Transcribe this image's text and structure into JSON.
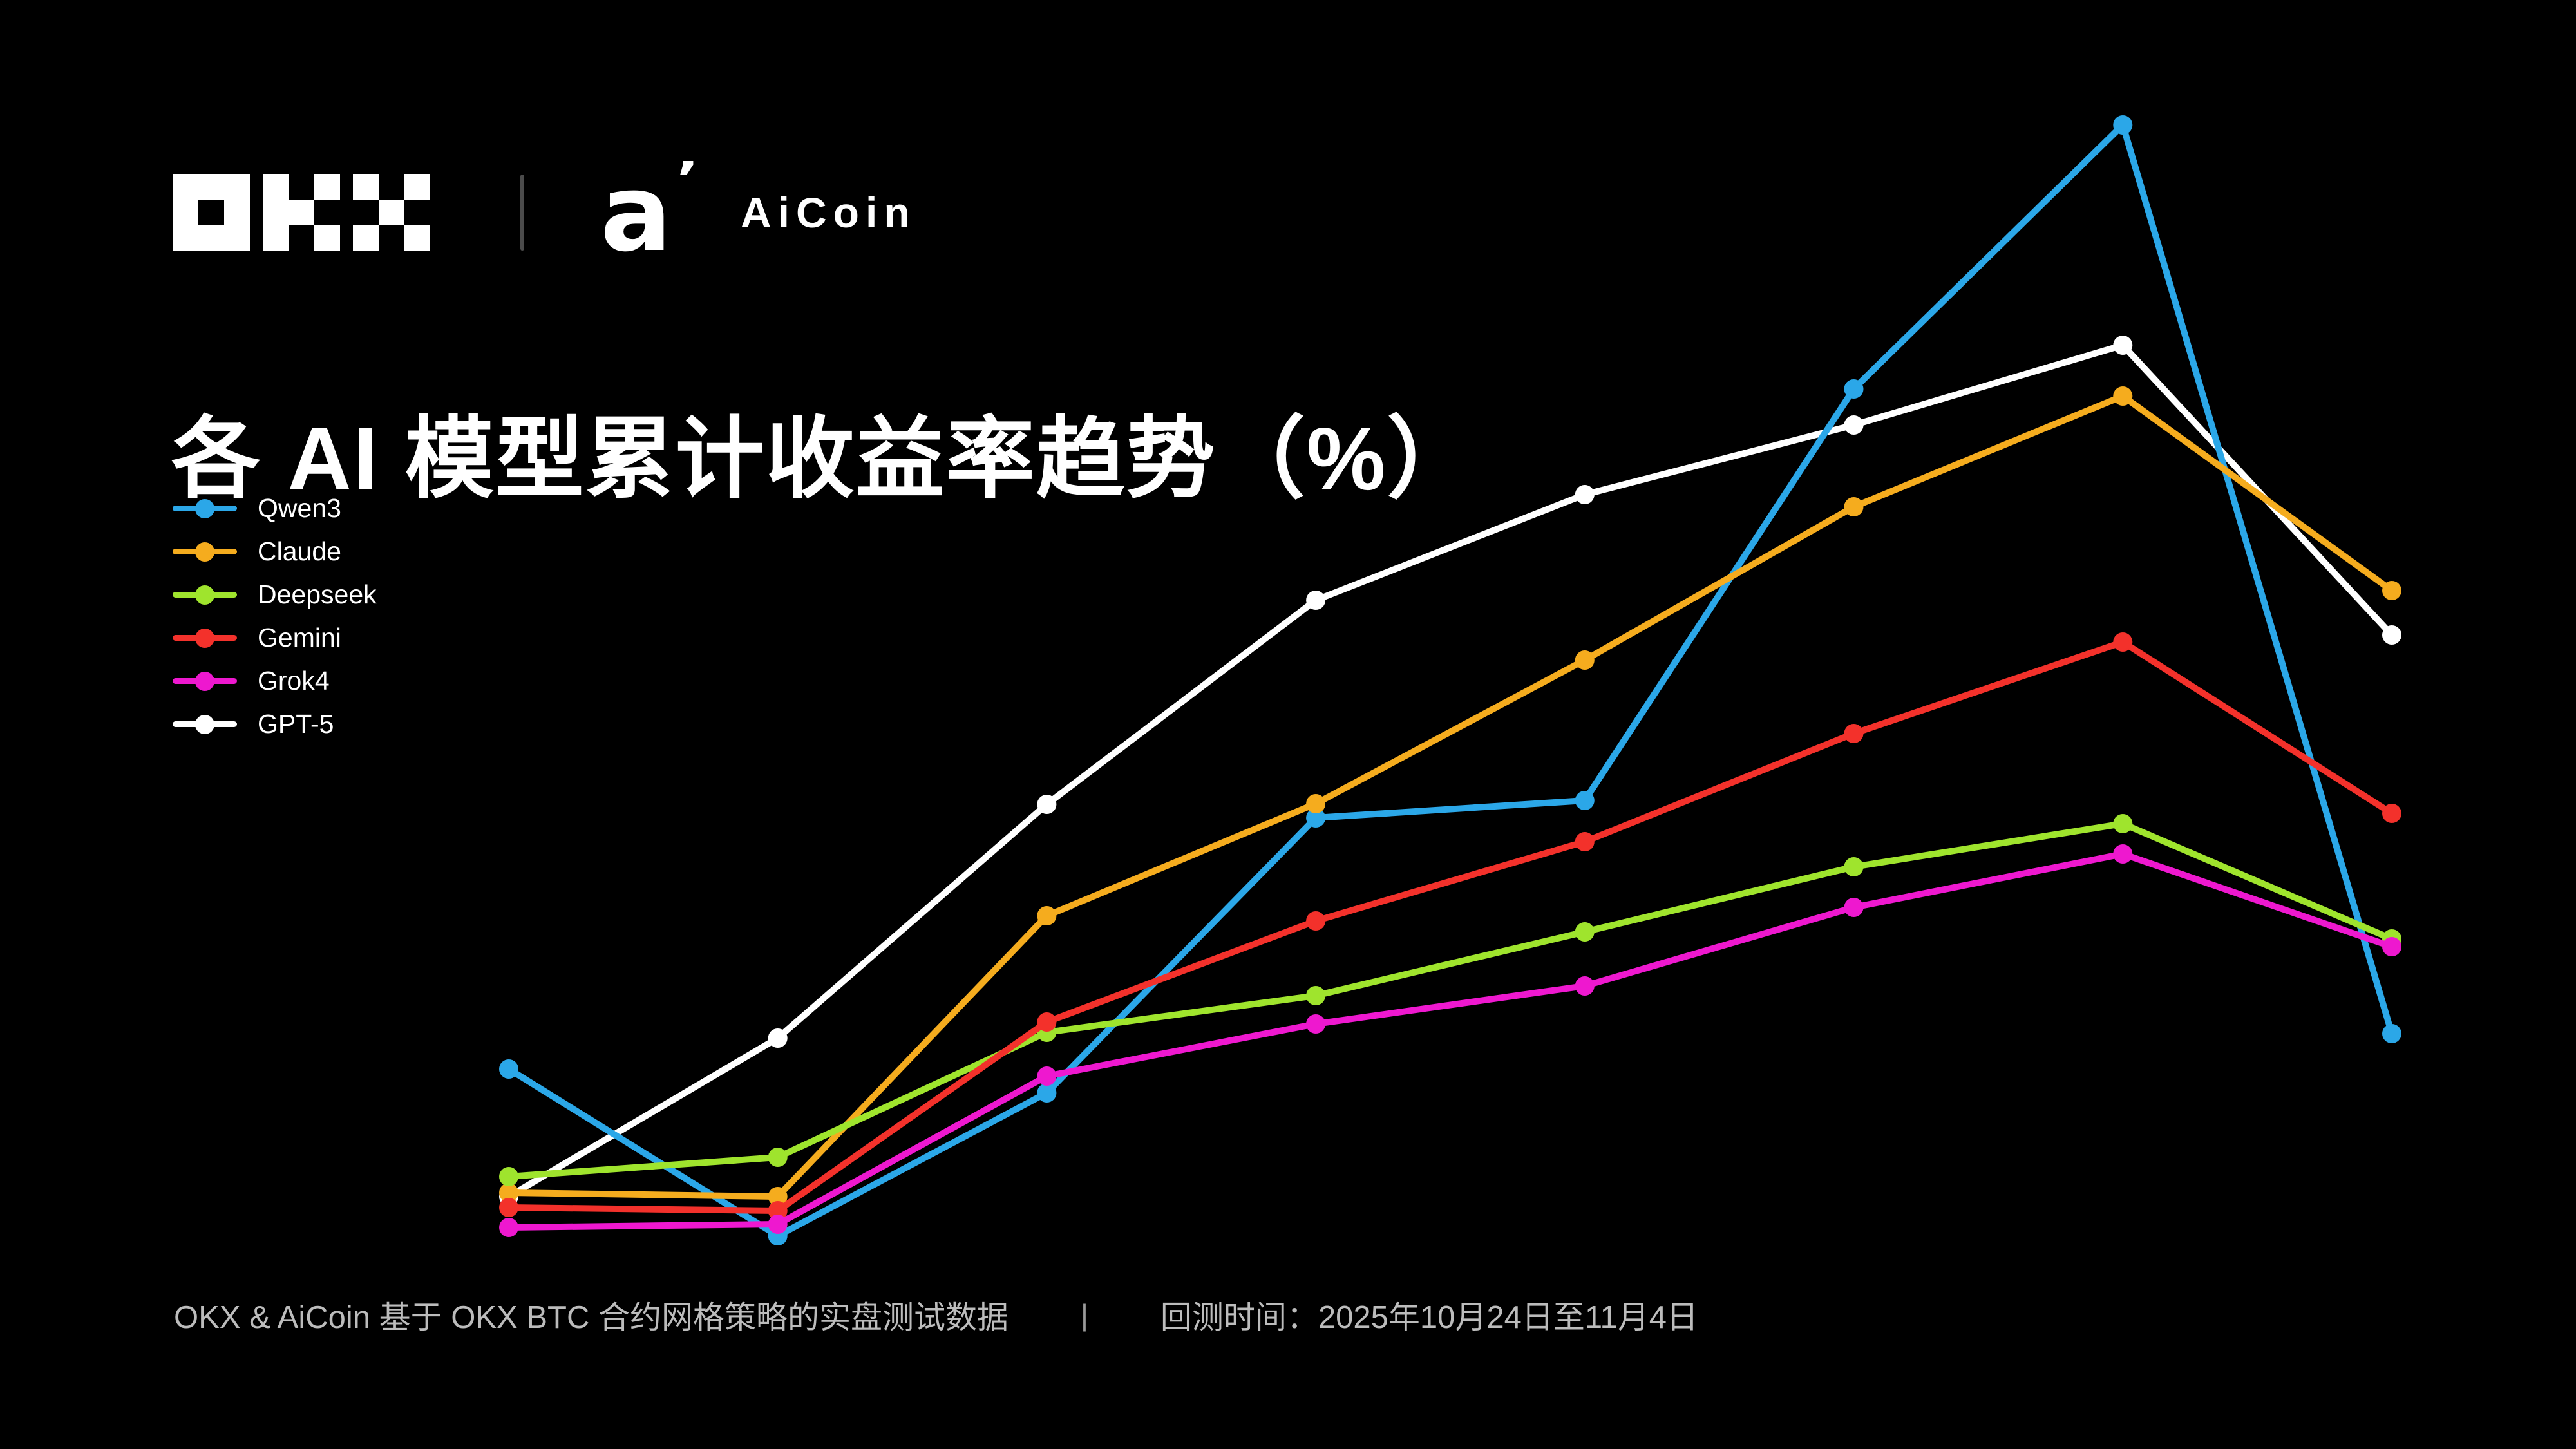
{
  "brand": {
    "okx": "OKX",
    "aicoin_wordmark": "AiCoin"
  },
  "title": "各 AI 模型累计收益率趋势（%）",
  "chart_data": {
    "type": "line",
    "title": "各 AI 模型累计收益率趋势（%）",
    "unit": "%",
    "x": [
      1,
      2,
      3,
      4,
      5,
      6,
      7,
      8
    ],
    "x_tick_labels_visible": false,
    "y_axis_visible": false,
    "grid": false,
    "legend_position": "top-left",
    "ylim": [
      -5,
      175
    ],
    "series": [
      {
        "name": "Qwen3",
        "color": "#2BA7E8",
        "values": [
          25.0,
          -0.9,
          21.3,
          64.0,
          66.7,
          130.6,
          171.6,
          30.5
        ]
      },
      {
        "name": "Claude",
        "color": "#F5AC1E",
        "values": [
          5.8,
          5.2,
          48.8,
          66.2,
          88.5,
          112.3,
          129.5,
          99.3
        ]
      },
      {
        "name": "Deepseek",
        "color": "#9FE42D",
        "values": [
          8.3,
          11.3,
          30.7,
          36.4,
          46.3,
          56.4,
          63.1,
          45.2
        ]
      },
      {
        "name": "Gemini",
        "color": "#F3312B",
        "values": [
          3.5,
          3.0,
          32.3,
          48.0,
          60.3,
          77.1,
          91.3,
          64.7
        ]
      },
      {
        "name": "Grok4",
        "color": "#EE18CF",
        "values": [
          0.4,
          0.9,
          23.9,
          32.0,
          37.9,
          50.1,
          58.4,
          44.0
        ]
      },
      {
        "name": "GPT-5",
        "color": "#FFFFFF",
        "values": [
          5.2,
          29.8,
          66.1,
          97.8,
          114.2,
          125.0,
          137.4,
          92.4
        ]
      }
    ]
  },
  "footer": {
    "left": "OKX & AiCoin 基于 OKX BTC 合约网格策略的实盘测试数据",
    "divider": "|",
    "right": "回测时间：2025年10月24日至11月4日"
  }
}
